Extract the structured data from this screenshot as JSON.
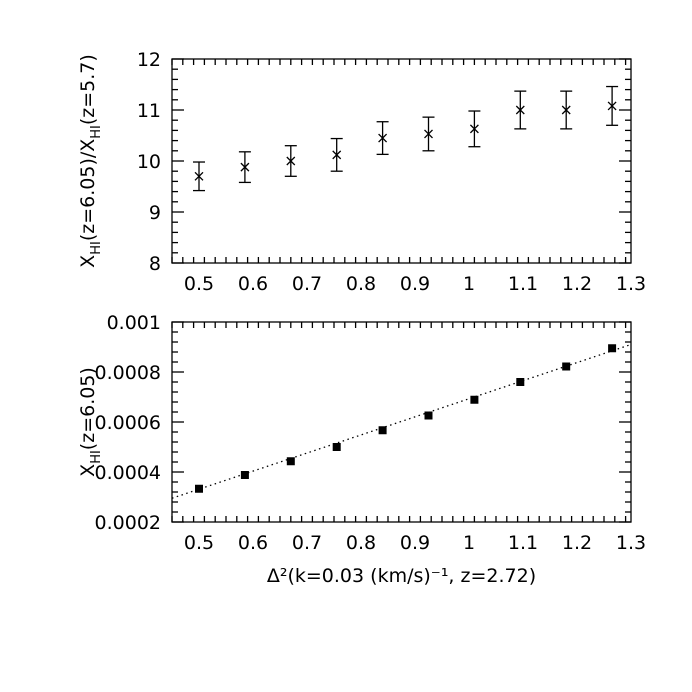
{
  "chart_data": [
    {
      "type": "scatter",
      "title": "",
      "xlabel": "",
      "ylabel": "X_HI(z=6.05)/X_HI(z=5.7)",
      "ylabel_parts": [
        "X",
        "HI",
        "(z=6.05)/X",
        "HI",
        "(z=5.7)"
      ],
      "xlim": [
        0.45,
        1.3
      ],
      "ylim": [
        8,
        12
      ],
      "x_ticks": [
        "0.5",
        "0.6",
        "0.7",
        "0.8",
        "0.9",
        "1",
        "1.1",
        "1.2",
        "1.3"
      ],
      "y_ticks": [
        "8",
        "9",
        "10",
        "11",
        "12"
      ],
      "marker": "cross",
      "errorbars": true,
      "series": [
        {
          "x": [
            0.5,
            0.585,
            0.67,
            0.755,
            0.84,
            0.925,
            1.01,
            1.095,
            1.18,
            1.265
          ],
          "y": [
            9.7,
            9.88,
            10.0,
            10.12,
            10.45,
            10.53,
            10.63,
            11.0,
            11.0,
            11.08
          ],
          "err": [
            0.28,
            0.3,
            0.3,
            0.32,
            0.32,
            0.33,
            0.35,
            0.37,
            0.37,
            0.38
          ]
        }
      ]
    },
    {
      "type": "scatter",
      "title": "",
      "xlabel": "Δ²(k=0.03 (km/s)⁻¹, z=2.72)",
      "ylabel": "X_HI(z=6.05)",
      "ylabel_parts": [
        "X",
        "HI",
        "(z=6.05)",
        "",
        ""
      ],
      "xlim": [
        0.45,
        1.3
      ],
      "ylim": [
        0.0002,
        0.001
      ],
      "x_ticks": [
        "0.5",
        "0.6",
        "0.7",
        "0.8",
        "0.9",
        "1",
        "1.1",
        "1.2",
        "1.3"
      ],
      "y_ticks": [
        "0.0002",
        "0.0004",
        "0.0006",
        "0.0008",
        "0.001"
      ],
      "marker": "square",
      "fit_line": {
        "style": "dotted",
        "x": [
          0.45,
          1.3
        ],
        "y": [
          0.000295,
          0.00091
        ]
      },
      "series": [
        {
          "x": [
            0.5,
            0.585,
            0.67,
            0.755,
            0.84,
            0.925,
            1.01,
            1.095,
            1.18,
            1.265
          ],
          "y": [
            0.000333,
            0.000388,
            0.000443,
            0.0005,
            0.000567,
            0.000626,
            0.000689,
            0.00076,
            0.000822,
            0.000895
          ]
        }
      ]
    }
  ]
}
